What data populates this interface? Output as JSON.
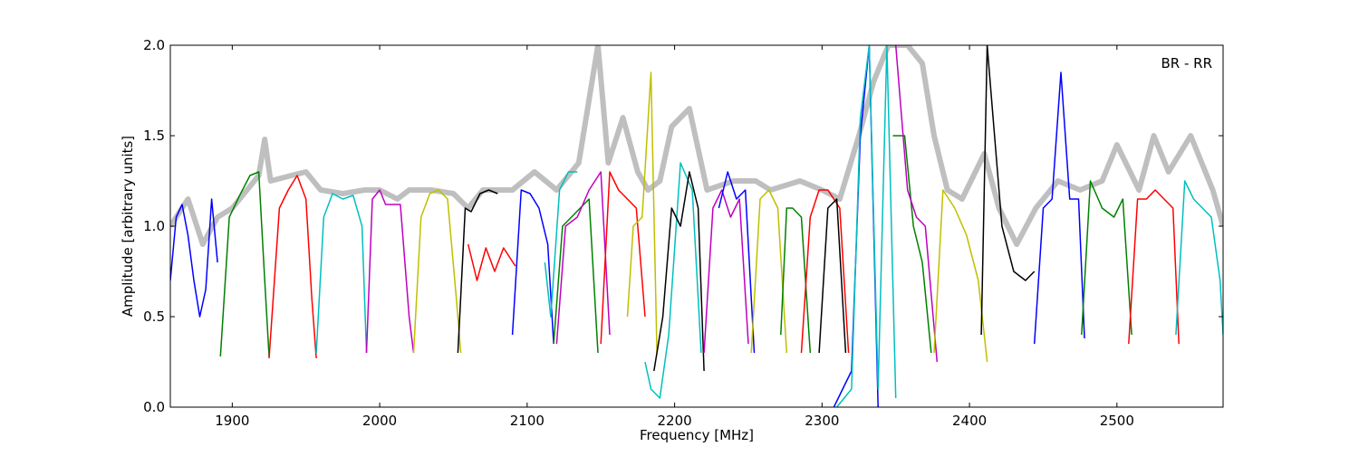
{
  "chart_data": {
    "type": "line",
    "title": "",
    "annotation": "BR - RR",
    "xlabel": "Frequency [MHz]",
    "ylabel": "Amplitude [arbitrary units]",
    "xlim": [
      1858,
      2572
    ],
    "ylim": [
      0.0,
      2.0
    ],
    "grid": false,
    "x_ticks": [
      1900,
      2000,
      2100,
      2200,
      2300,
      2400,
      2500
    ],
    "x_tick_labels": [
      "1900",
      "2000",
      "2100",
      "2200",
      "2300",
      "2400",
      "2500"
    ],
    "y_ticks": [
      0.0,
      0.5,
      1.0,
      1.5,
      2.0
    ],
    "y_tick_labels": [
      "0.0",
      "0.5",
      "1.0",
      "1.5",
      "2.0"
    ],
    "colors": {
      "background_series": "#bfbfbf",
      "palette": [
        "#0000ff",
        "#008000",
        "#ff0000",
        "#00bfbf",
        "#bf00bf",
        "#bfbf00",
        "#000000"
      ]
    },
    "reference_series": {
      "color": "#bfbfbf",
      "x": [
        1858,
        1870,
        1880,
        1890,
        1900,
        1910,
        1918,
        1922,
        1926,
        1940,
        1950,
        1960,
        1975,
        1990,
        2000,
        2012,
        2020,
        2035,
        2050,
        2060,
        2070,
        2080,
        2090,
        2105,
        2120,
        2135,
        2148,
        2155,
        2165,
        2175,
        2182,
        2190,
        2198,
        2210,
        2222,
        2240,
        2255,
        2265,
        2285,
        2300,
        2312,
        2325,
        2335,
        2345,
        2358,
        2368,
        2376,
        2385,
        2395,
        2410,
        2420,
        2432,
        2445,
        2460,
        2475,
        2490,
        2500,
        2515,
        2525,
        2535,
        2550,
        2565,
        2572
      ],
      "y": [
        1.0,
        1.15,
        0.9,
        1.05,
        1.1,
        1.2,
        1.28,
        1.48,
        1.25,
        1.28,
        1.3,
        1.2,
        1.18,
        1.2,
        1.2,
        1.15,
        1.2,
        1.2,
        1.18,
        1.1,
        1.2,
        1.2,
        1.2,
        1.3,
        1.2,
        1.35,
        2.0,
        1.35,
        1.6,
        1.3,
        1.2,
        1.25,
        1.55,
        1.65,
        1.2,
        1.25,
        1.25,
        1.2,
        1.25,
        1.2,
        1.15,
        1.5,
        1.8,
        2.0,
        2.0,
        1.9,
        1.5,
        1.2,
        1.15,
        1.4,
        1.1,
        0.9,
        1.1,
        1.25,
        1.2,
        1.25,
        1.45,
        1.2,
        1.5,
        1.3,
        1.5,
        1.2,
        1.0
      ]
    },
    "series": [
      {
        "color": "#0000ff",
        "x": [
          1858,
          1862,
          1866,
          1870,
          1874,
          1878,
          1882,
          1886,
          1890
        ],
        "y": [
          0.7,
          1.05,
          1.12,
          0.95,
          0.7,
          0.5,
          0.65,
          1.15,
          0.8
        ]
      },
      {
        "color": "#008000",
        "x": [
          1892,
          1898,
          1905,
          1912,
          1918,
          1922,
          1925
        ],
        "y": [
          0.28,
          1.05,
          1.17,
          1.28,
          1.3,
          0.7,
          0.28
        ]
      },
      {
        "color": "#ff0000",
        "x": [
          1925,
          1932,
          1938,
          1944,
          1950,
          1954,
          1957
        ],
        "y": [
          0.27,
          1.1,
          1.2,
          1.28,
          1.15,
          0.6,
          0.27
        ]
      },
      {
        "color": "#00bfbf",
        "x": [
          1957,
          1962,
          1968,
          1975,
          1982,
          1988,
          1991
        ],
        "y": [
          0.3,
          1.05,
          1.18,
          1.15,
          1.17,
          1.0,
          0.3
        ]
      },
      {
        "color": "#bf00bf",
        "x": [
          1991,
          1995,
          2000,
          2004,
          2008,
          2014,
          2020,
          2023
        ],
        "y": [
          0.3,
          1.15,
          1.2,
          1.12,
          1.12,
          1.12,
          0.5,
          0.3
        ]
      },
      {
        "color": "#bfbf00",
        "x": [
          2023,
          2028,
          2034,
          2040,
          2046,
          2052,
          2055
        ],
        "y": [
          0.3,
          1.05,
          1.18,
          1.2,
          1.15,
          0.6,
          0.3
        ]
      },
      {
        "color": "#000000",
        "x": [
          2053,
          2058,
          2062,
          2068,
          2074,
          2080
        ],
        "y": [
          0.3,
          1.1,
          1.08,
          1.18,
          1.2,
          1.18
        ]
      },
      {
        "color": "#ff0000",
        "x": [
          2060,
          2066,
          2072,
          2078,
          2084,
          2092
        ],
        "y": [
          0.9,
          0.7,
          0.88,
          0.75,
          0.88,
          0.78
        ]
      },
      {
        "color": "#0000ff",
        "x": [
          2090,
          2096,
          2102,
          2108,
          2114,
          2118
        ],
        "y": [
          0.4,
          1.2,
          1.18,
          1.1,
          0.9,
          0.35
        ]
      },
      {
        "color": "#00bfbf",
        "x": [
          2112,
          2116,
          2122,
          2128,
          2134
        ],
        "y": [
          0.8,
          0.5,
          1.2,
          1.3,
          1.3
        ]
      },
      {
        "color": "#008000",
        "x": [
          2118,
          2124,
          2130,
          2136,
          2142,
          2148
        ],
        "y": [
          0.35,
          1.0,
          1.05,
          1.1,
          1.15,
          0.3
        ]
      },
      {
        "color": "#bf00bf",
        "x": [
          2120,
          2126,
          2134,
          2142,
          2150,
          2156
        ],
        "y": [
          0.35,
          1.0,
          1.05,
          1.2,
          1.3,
          0.4
        ]
      },
      {
        "color": "#ff0000",
        "x": [
          2150,
          2156,
          2162,
          2168,
          2174,
          2180
        ],
        "y": [
          0.35,
          1.3,
          1.2,
          1.15,
          1.1,
          0.5
        ]
      },
      {
        "color": "#bfbf00",
        "x": [
          2168,
          2172,
          2178,
          2184,
          2188
        ],
        "y": [
          0.5,
          1.0,
          1.05,
          1.85,
          0.3
        ]
      },
      {
        "color": "#00bfbf",
        "x": [
          2180,
          2184,
          2190,
          2196,
          2204,
          2212,
          2218
        ],
        "y": [
          0.25,
          0.1,
          0.05,
          0.4,
          1.35,
          1.2,
          0.3
        ]
      },
      {
        "color": "#000000",
        "x": [
          2186,
          2192,
          2198,
          2204,
          2210,
          2216,
          2220
        ],
        "y": [
          0.2,
          0.5,
          1.1,
          1.0,
          1.3,
          1.1,
          0.2
        ]
      },
      {
        "color": "#bf00bf",
        "x": [
          2220,
          2226,
          2232,
          2238,
          2244,
          2250
        ],
        "y": [
          0.3,
          1.1,
          1.2,
          1.05,
          1.15,
          0.35
        ]
      },
      {
        "color": "#0000ff",
        "x": [
          2230,
          2236,
          2242,
          2248,
          2254
        ],
        "y": [
          1.1,
          1.3,
          1.15,
          1.2,
          0.3
        ]
      },
      {
        "color": "#bfbf00",
        "x": [
          2252,
          2258,
          2264,
          2270,
          2276
        ],
        "y": [
          0.3,
          1.15,
          1.2,
          1.1,
          0.3
        ]
      },
      {
        "color": "#008000",
        "x": [
          2272,
          2276,
          2280,
          2286,
          2292
        ],
        "y": [
          0.4,
          1.1,
          1.1,
          1.05,
          0.3
        ]
      },
      {
        "color": "#ff0000",
        "x": [
          2286,
          2292,
          2298,
          2304,
          2312,
          2318
        ],
        "y": [
          0.3,
          1.05,
          1.2,
          1.2,
          1.1,
          0.3
        ]
      },
      {
        "color": "#000000",
        "x": [
          2298,
          2304,
          2310,
          2316
        ],
        "y": [
          0.3,
          1.1,
          1.15,
          0.3
        ]
      },
      {
        "color": "#0000ff",
        "x": [
          2308,
          2314,
          2320,
          2326,
          2332,
          2338
        ],
        "y": [
          0.0,
          0.1,
          0.2,
          1.5,
          2.0,
          0.0
        ]
      },
      {
        "color": "#00bfbf",
        "x": [
          2310,
          2320,
          2326,
          2332,
          2338,
          2344,
          2350
        ],
        "y": [
          0.0,
          0.1,
          1.6,
          2.0,
          0.1,
          2.0,
          0.05
        ]
      },
      {
        "color": "#008000",
        "x": [
          2348,
          2356,
          2362,
          2368,
          2374
        ],
        "y": [
          1.5,
          1.5,
          1.0,
          0.8,
          0.3
        ]
      },
      {
        "color": "#bf00bf",
        "x": [
          2350,
          2358,
          2364,
          2370,
          2378
        ],
        "y": [
          2.0,
          1.2,
          1.05,
          1.0,
          0.25
        ]
      },
      {
        "color": "#bfbf00",
        "x": [
          2376,
          2382,
          2390,
          2398,
          2406,
          2412
        ],
        "y": [
          0.3,
          1.2,
          1.1,
          0.95,
          0.7,
          0.25
        ]
      },
      {
        "color": "#000000",
        "x": [
          2408,
          2412,
          2416,
          2422,
          2430,
          2438,
          2444
        ],
        "y": [
          0.4,
          2.0,
          1.6,
          1.0,
          0.75,
          0.7,
          0.75
        ]
      },
      {
        "color": "#0000ff",
        "x": [
          2444,
          2450,
          2456,
          2462,
          2468,
          2474,
          2478
        ],
        "y": [
          0.35,
          1.1,
          1.15,
          1.85,
          1.15,
          1.15,
          0.38
        ]
      },
      {
        "color": "#008000",
        "x": [
          2476,
          2482,
          2490,
          2498,
          2504,
          2510
        ],
        "y": [
          0.4,
          1.25,
          1.1,
          1.05,
          1.15,
          0.4
        ]
      },
      {
        "color": "#ff0000",
        "x": [
          2508,
          2514,
          2520,
          2526,
          2532,
          2538,
          2542
        ],
        "y": [
          0.35,
          1.15,
          1.15,
          1.2,
          1.15,
          1.1,
          0.35
        ]
      },
      {
        "color": "#00bfbf",
        "x": [
          2540,
          2546,
          2552,
          2558,
          2564,
          2570,
          2572
        ],
        "y": [
          0.4,
          1.25,
          1.15,
          1.1,
          1.05,
          0.7,
          0.4
        ]
      }
    ]
  }
}
